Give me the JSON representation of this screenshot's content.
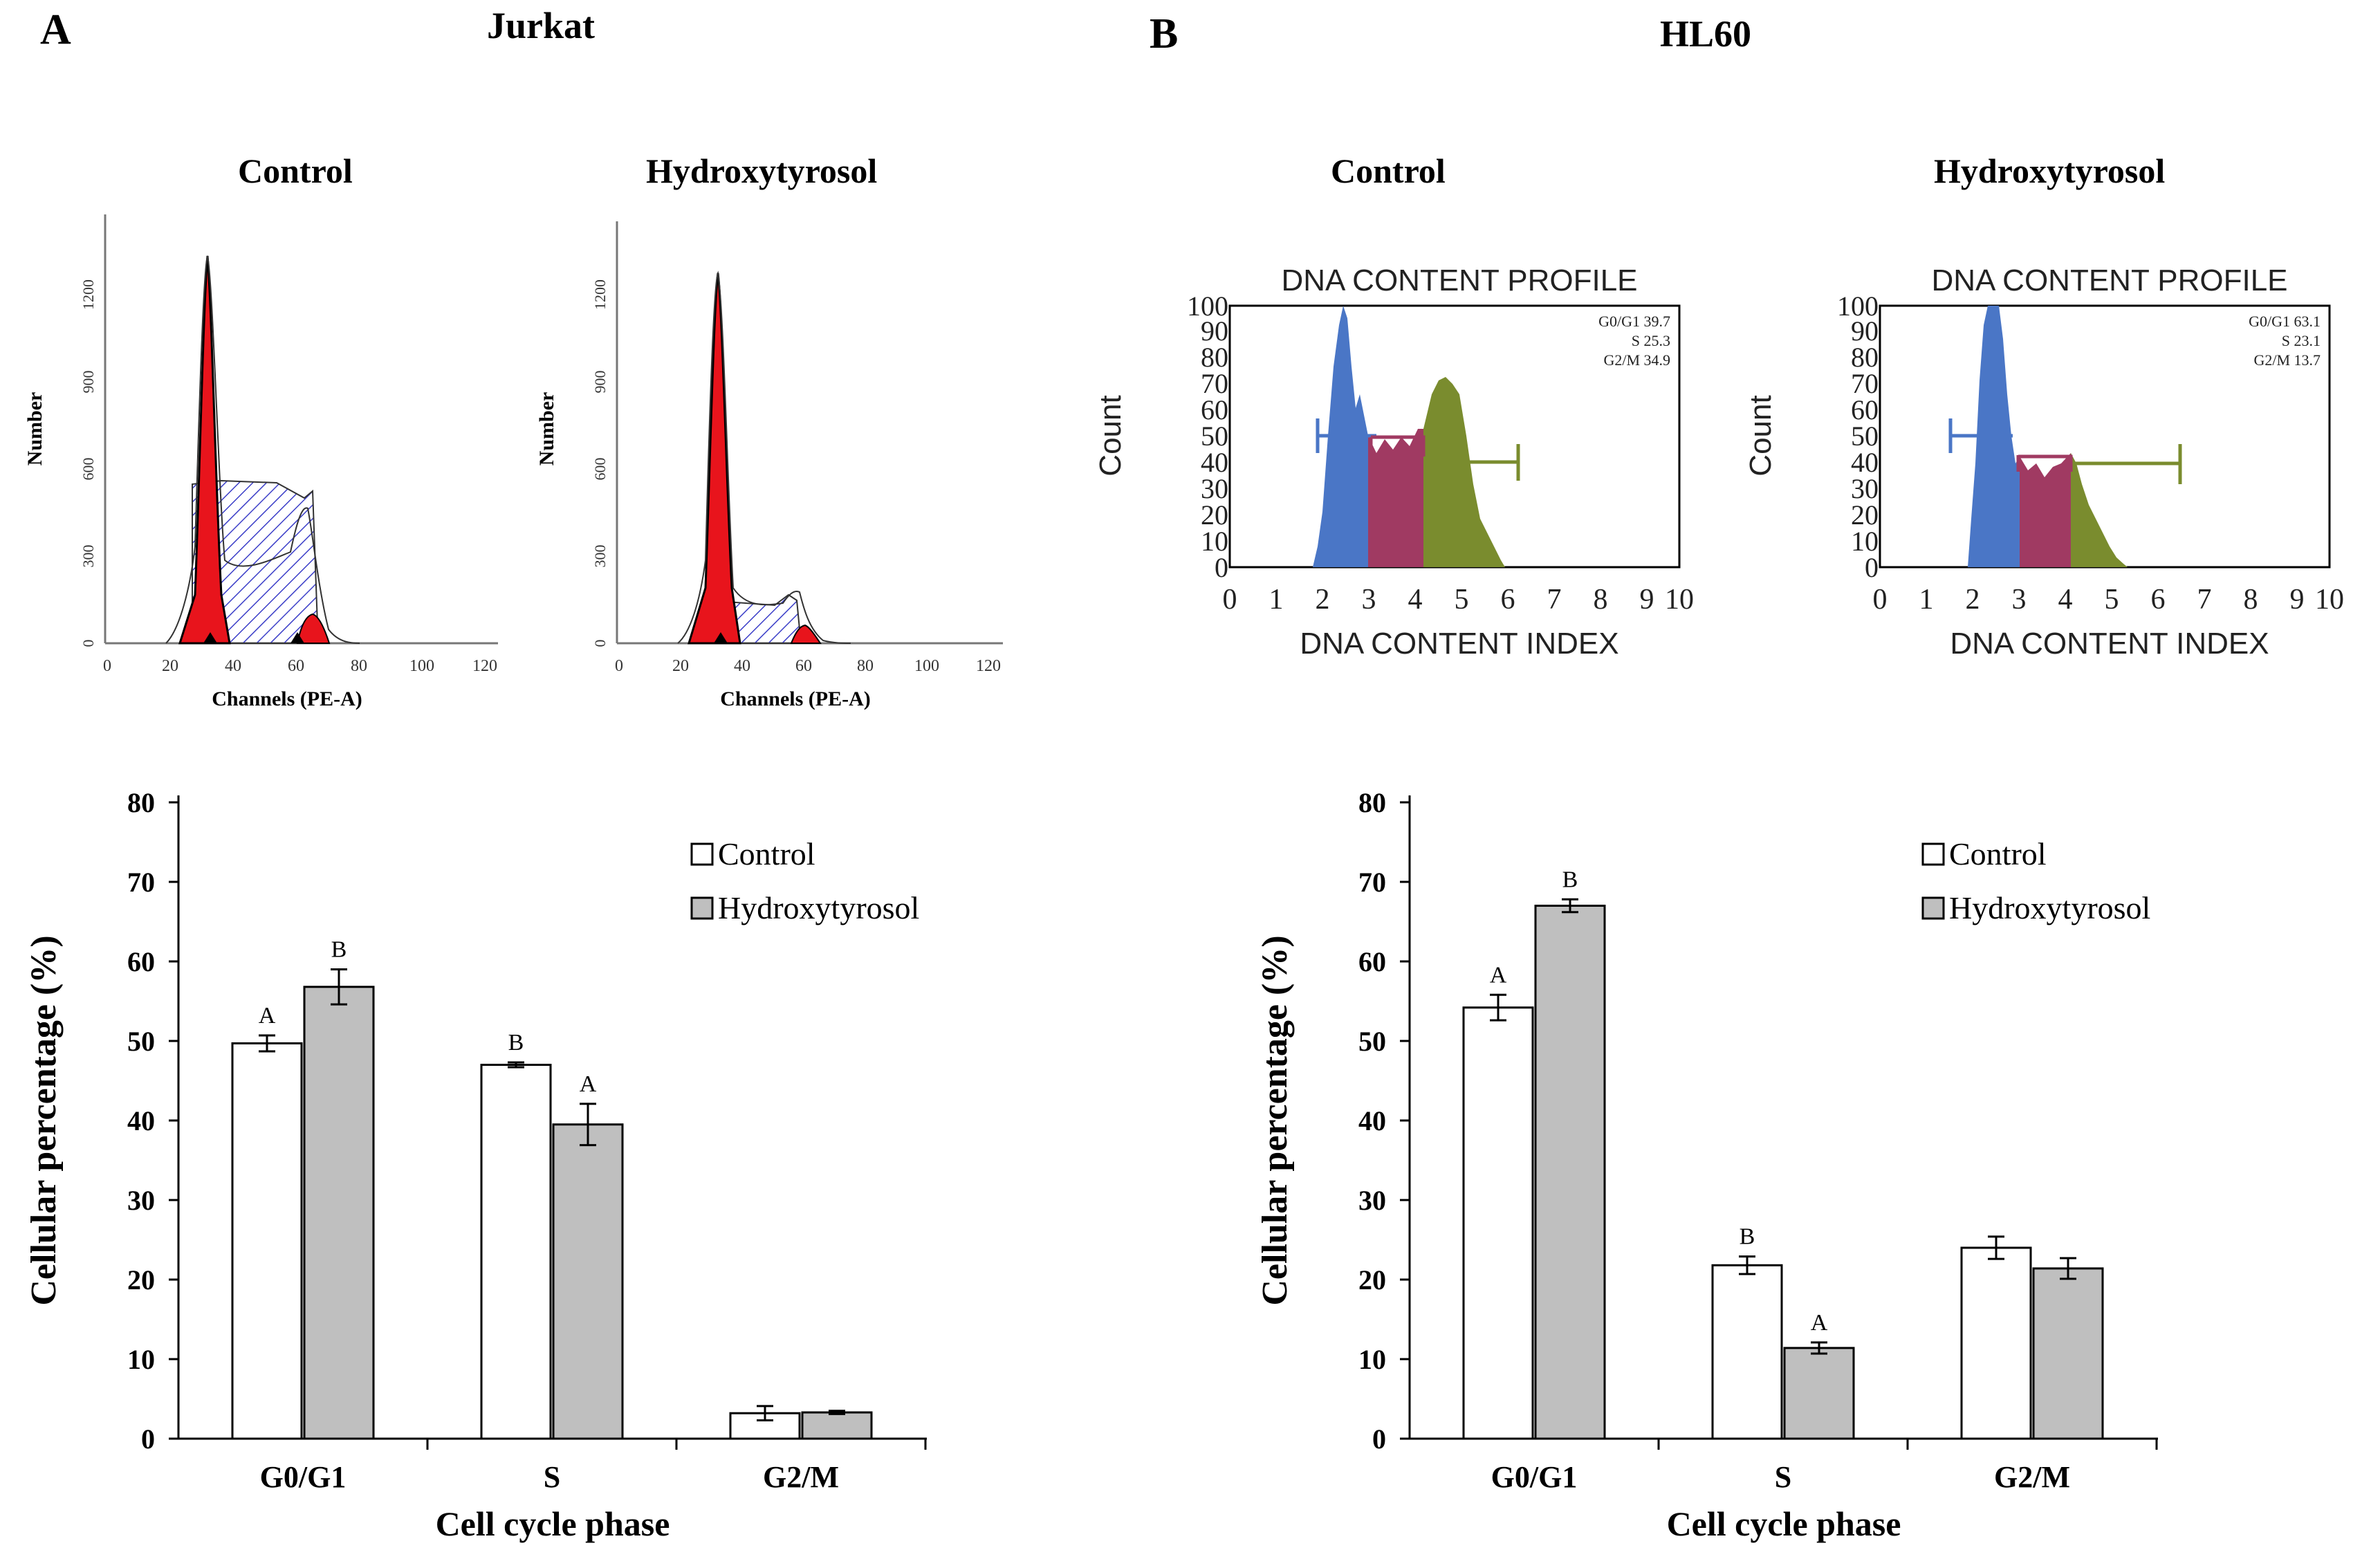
{
  "colors": {
    "red_peak": "#e8141c",
    "hatch_blue": "#3b3ec8",
    "blue_phase": "#4a76c6",
    "purple_phase": "#a03a62",
    "green_phase": "#7a8c2e",
    "bar_control": "#ffffff",
    "bar_treated": "#bfbfbf"
  },
  "panels": {
    "A": {
      "letter": "A",
      "name": "Jurkat",
      "hist_control": {
        "title": "Control",
        "ylabel": "Number",
        "xlabel": "Channels  (PE-A)",
        "yticks": [
          "0",
          "300",
          "600",
          "900",
          "1200"
        ],
        "xticks": [
          "0",
          "20",
          "40",
          "60",
          "80",
          "100",
          "120"
        ]
      },
      "hist_treated": {
        "title": "Hydroxytyrosol",
        "ylabel": "Number",
        "xlabel": "Channels  (PE-A)",
        "yticks": [
          "0",
          "300",
          "600",
          "900",
          "1200"
        ],
        "xticks": [
          "0",
          "20",
          "40",
          "60",
          "80",
          "100",
          "120"
        ]
      }
    },
    "B": {
      "letter": "B",
      "name": "HL60",
      "hist_control": {
        "title": "Control",
        "profile_title": "DNA CONTENT PROFILE",
        "ylabel": "Count",
        "xlabel": "DNA CONTENT INDEX",
        "stats": [
          "G0/G1 39.7",
          "S 25.3",
          "G2/M 34.9"
        ],
        "yticks": [
          "0",
          "10",
          "20",
          "30",
          "40",
          "50",
          "60",
          "70",
          "80",
          "90",
          "100"
        ],
        "xticks": [
          "0",
          "1",
          "2",
          "3",
          "4",
          "5",
          "6",
          "7",
          "8",
          "9",
          "10"
        ]
      },
      "hist_treated": {
        "title": "Hydroxytyrosol",
        "profile_title": "DNA CONTENT PROFILE",
        "ylabel": "Count",
        "xlabel": "DNA CONTENT INDEX",
        "stats": [
          "G0/G1 63.1",
          "S 23.1",
          "G2/M 13.7"
        ],
        "yticks": [
          "0",
          "10",
          "20",
          "30",
          "40",
          "50",
          "60",
          "70",
          "80",
          "90",
          "100"
        ],
        "xticks": [
          "0",
          "1",
          "2",
          "3",
          "4",
          "5",
          "6",
          "7",
          "8",
          "9",
          "10"
        ]
      }
    }
  },
  "chart_data": [
    {
      "type": "bar",
      "panel": "A - Jurkat",
      "categories": [
        "G0/G1",
        "S",
        "G2/M"
      ],
      "series": [
        {
          "name": "Control",
          "values": [
            49.7,
            47.0,
            3.2
          ],
          "errors": [
            1.0,
            0.3,
            0.9
          ],
          "letters": [
            "A",
            "B",
            ""
          ]
        },
        {
          "name": "Hydroxytyrosol",
          "values": [
            56.8,
            39.5,
            3.3
          ],
          "errors": [
            2.2,
            2.6,
            0.2
          ],
          "letters": [
            "B",
            "A",
            ""
          ]
        }
      ],
      "xlabel": "Cell cycle phase",
      "ylabel": "Cellular  percentage  (%)",
      "yticks": [
        "0",
        "10",
        "20",
        "30",
        "40",
        "50",
        "60",
        "70",
        "80"
      ],
      "ylim": [
        0,
        80
      ],
      "legend": "top-right"
    },
    {
      "type": "bar",
      "panel": "B - HL60",
      "categories": [
        "G0/G1",
        "S",
        "G2/M"
      ],
      "series": [
        {
          "name": "Control",
          "values": [
            54.2,
            21.8,
            24.0
          ],
          "errors": [
            1.6,
            1.1,
            1.4
          ],
          "letters": [
            "A",
            "B",
            ""
          ]
        },
        {
          "name": "Hydroxytyrosol",
          "values": [
            67.0,
            11.4,
            21.4
          ],
          "errors": [
            0.8,
            0.7,
            1.3
          ],
          "letters": [
            "B",
            "A",
            ""
          ]
        }
      ],
      "xlabel": "Cell cycle phase",
      "ylabel": "Cellular  percentage  (%)",
      "yticks": [
        "0",
        "10",
        "20",
        "30",
        "40",
        "50",
        "60",
        "70",
        "80"
      ],
      "ylim": [
        0,
        80
      ],
      "legend": "top-right"
    }
  ]
}
